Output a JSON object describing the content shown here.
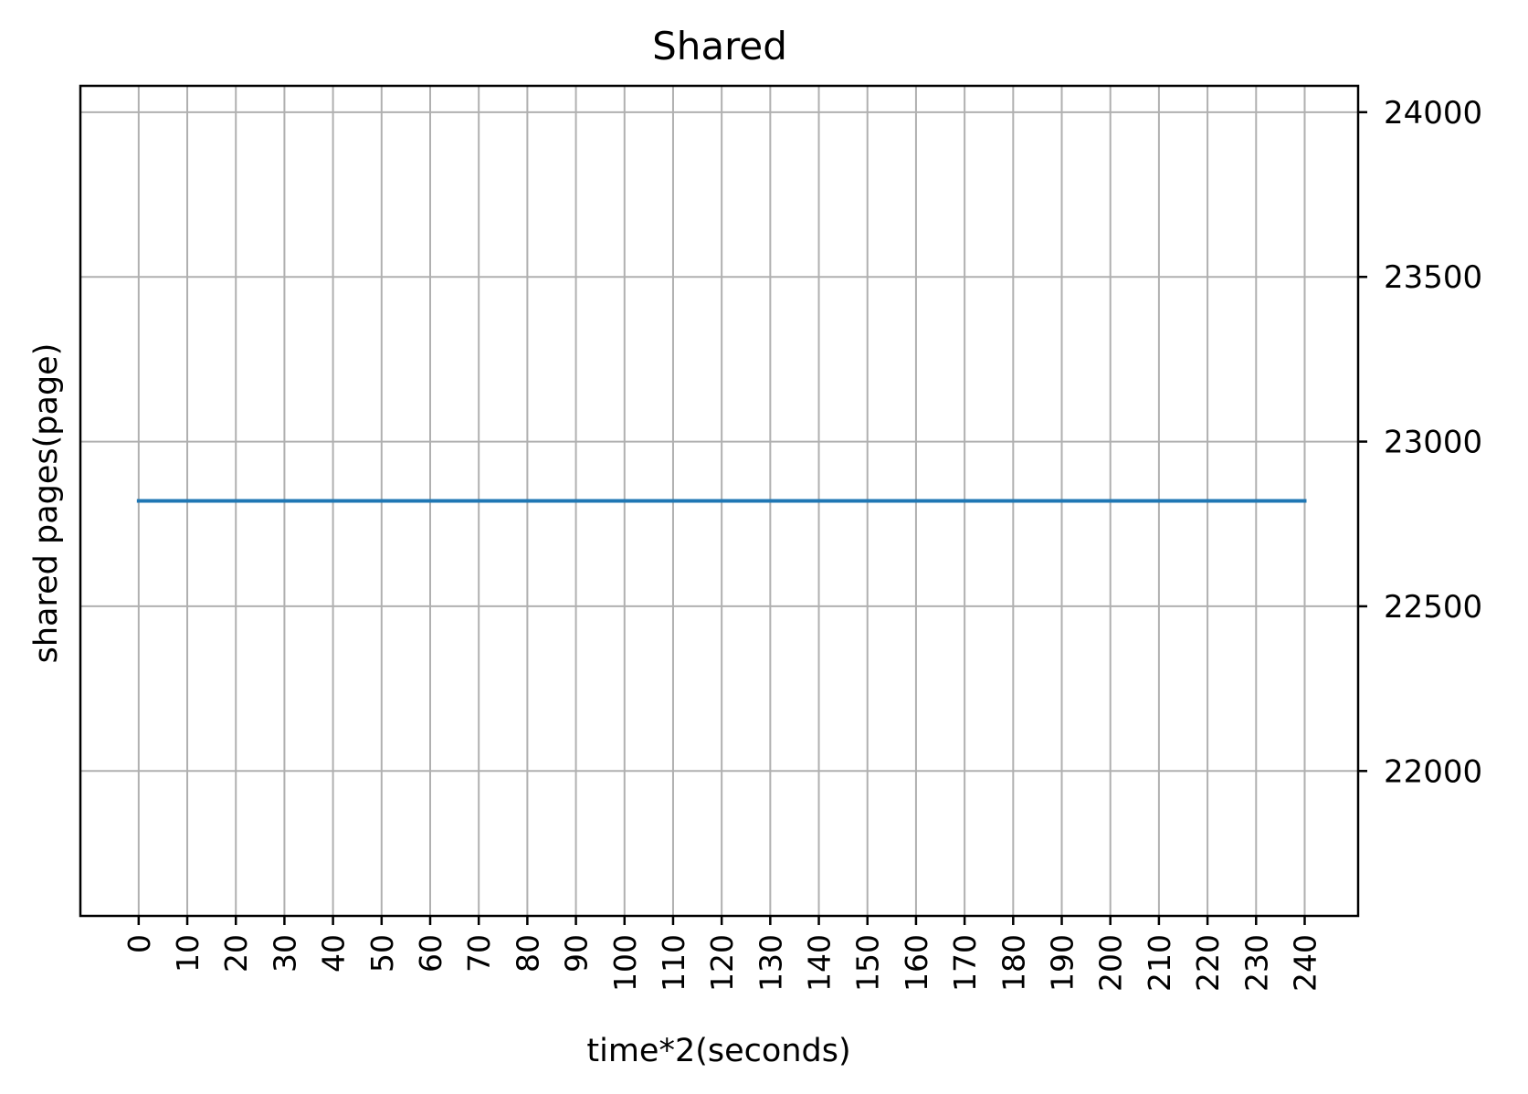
{
  "chart_data": {
    "type": "line",
    "title": "Shared",
    "xlabel": "time*2(seconds)",
    "ylabel": "shared pages(page)",
    "y_axis_side": "right",
    "xlim": [
      -12,
      251
    ],
    "ylim": [
      21560,
      24080
    ],
    "x_ticks": [
      0,
      10,
      20,
      30,
      40,
      50,
      60,
      70,
      80,
      90,
      100,
      110,
      120,
      130,
      140,
      150,
      160,
      170,
      180,
      190,
      200,
      210,
      220,
      230,
      240
    ],
    "x_tick_labels": [
      "0",
      "10",
      "20",
      "30",
      "40",
      "50",
      "60",
      "70",
      "80",
      "90",
      "100",
      "110",
      "120",
      "130",
      "140",
      "150",
      "160",
      "170",
      "180",
      "190",
      "200",
      "210",
      "220",
      "230",
      "240"
    ],
    "x_tick_label_rotation": "vertical",
    "y_ticks": [
      22000,
      22500,
      23000,
      23500,
      24000
    ],
    "y_tick_labels": [
      "22000",
      "22500",
      "23000",
      "23500",
      "24000"
    ],
    "grid": true,
    "legend": "none",
    "series": [
      {
        "color": "#1f77b4",
        "x": [
          0,
          240
        ],
        "y": [
          22820,
          22820
        ]
      }
    ],
    "colors": {
      "grid": "#b0b0b0",
      "axes": "#000000"
    }
  }
}
